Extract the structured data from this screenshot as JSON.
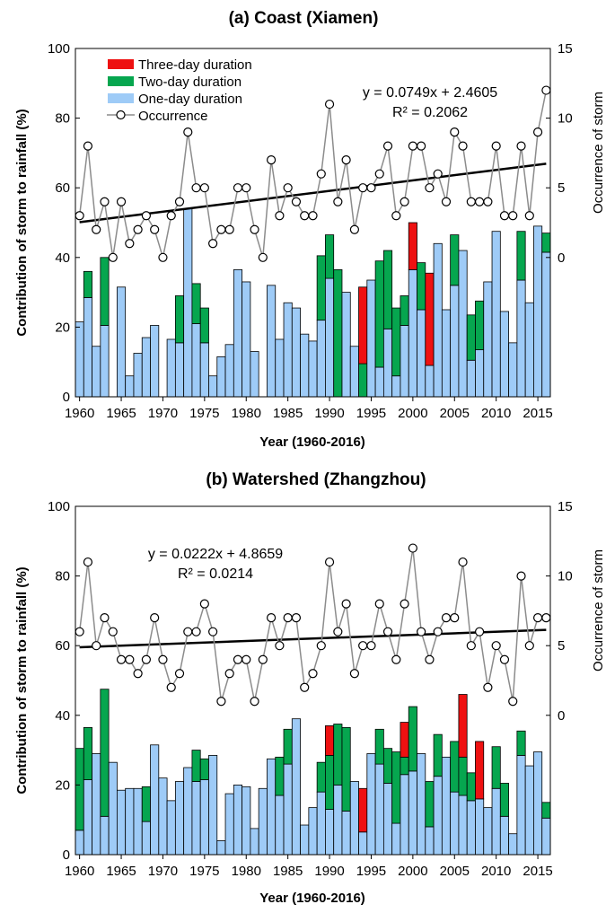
{
  "colors": {
    "one_day": "#9ecbf7",
    "two_day": "#06a64f",
    "three_day": "#ee1111",
    "occurrence": "#8c8c8c",
    "trend": "#000000"
  },
  "legend": {
    "three_day": "Three-day duration",
    "two_day": "Two-day duration",
    "one_day": "One-day duration",
    "occurrence": "Occurrence"
  },
  "chart_data": [
    {
      "type": "bar",
      "stacked": true,
      "title": "(a) Coast (Xiamen)",
      "xlabel": "Year (1960-2016)",
      "ylabel": "Contribution of storm to rainfall (%)",
      "y2label": "Occurrence of storm",
      "xlim": [
        1959.5,
        2016.5
      ],
      "ylim": [
        0,
        100
      ],
      "y2lim": [
        -10,
        15
      ],
      "x_ticks": [
        1960,
        1965,
        1970,
        1975,
        1980,
        1985,
        1990,
        1995,
        2000,
        2005,
        2010,
        2015
      ],
      "y_ticks": [
        0,
        20,
        40,
        60,
        80,
        100
      ],
      "y2_ticks": [
        0,
        5,
        10,
        15
      ],
      "trend_equation": "y = 0.0749x + 2.4605",
      "r_squared": "R² = 0.2062",
      "trend": {
        "slope": 0.0749,
        "intercept": 2.4605
      },
      "legend_position": "top-left",
      "years": [
        1960,
        1961,
        1962,
        1963,
        1964,
        1965,
        1966,
        1967,
        1968,
        1969,
        1970,
        1971,
        1972,
        1973,
        1974,
        1975,
        1976,
        1977,
        1978,
        1979,
        1980,
        1981,
        1982,
        1983,
        1984,
        1985,
        1986,
        1987,
        1988,
        1989,
        1990,
        1991,
        1992,
        1993,
        1994,
        1995,
        1996,
        1997,
        1998,
        1999,
        2000,
        2001,
        2002,
        2003,
        2004,
        2005,
        2006,
        2007,
        2008,
        2009,
        2010,
        2011,
        2012,
        2013,
        2014,
        2015,
        2016
      ],
      "series": [
        {
          "name": "One-day duration",
          "values": [
            21.5,
            28.5,
            14.5,
            20.5,
            0,
            31.5,
            6,
            12.5,
            17,
            20.5,
            0,
            16.5,
            15.5,
            54,
            21,
            15.5,
            6,
            11.5,
            15,
            36.5,
            33,
            13,
            0,
            32,
            16.5,
            27,
            25.5,
            18,
            16,
            22,
            34,
            0,
            30,
            14.5,
            0,
            33.5,
            8.5,
            19.5,
            6,
            20.5,
            36.5,
            25,
            9,
            44,
            25,
            32,
            42,
            10.5,
            13.5,
            33,
            47.5,
            24.5,
            15.5,
            33.5,
            27,
            49,
            41.5
          ]
        },
        {
          "name": "Two-day duration",
          "values": [
            0,
            7.5,
            0,
            19.5,
            0,
            0,
            0,
            0,
            0,
            0,
            0,
            0,
            13.5,
            0,
            11.5,
            10,
            0,
            0,
            0,
            0,
            0,
            0,
            0,
            0,
            0,
            0,
            0,
            0,
            0,
            18.5,
            12.5,
            36.5,
            0,
            0,
            9.5,
            0,
            30.5,
            22.5,
            19.5,
            8.5,
            0,
            13.5,
            0,
            0,
            0,
            14.5,
            0,
            13,
            14,
            0,
            0,
            0,
            0,
            14,
            0,
            0,
            5.5
          ]
        },
        {
          "name": "Three-day duration",
          "values": [
            0,
            0,
            0,
            0,
            0,
            0,
            0,
            0,
            0,
            0,
            0,
            0,
            0,
            0,
            0,
            0,
            0,
            0,
            0,
            0,
            0,
            0,
            0,
            0,
            0,
            0,
            0,
            0,
            0,
            0,
            0,
            0,
            0,
            0,
            22,
            0,
            0,
            0,
            0,
            0,
            13.5,
            0,
            26.5,
            0,
            0,
            0,
            0,
            0,
            0,
            0,
            0,
            0,
            0,
            0,
            0,
            0,
            0
          ]
        },
        {
          "name": "Occurrence",
          "axis": "right",
          "values": [
            3,
            8,
            2,
            4,
            0,
            4,
            1,
            2,
            3,
            2,
            0,
            3,
            4,
            9,
            5,
            5,
            1,
            2,
            2,
            5,
            5,
            2,
            0,
            7,
            3,
            5,
            4,
            3,
            3,
            6,
            11,
            4,
            7,
            2,
            5,
            5,
            6,
            8,
            3,
            4,
            8,
            8,
            5,
            6,
            4,
            9,
            8,
            4,
            4,
            4,
            8,
            3,
            3,
            8,
            3,
            9,
            12
          ]
        }
      ]
    },
    {
      "type": "bar",
      "stacked": true,
      "title": "(b) Watershed (Zhangzhou)",
      "xlabel": "Year (1960-2016)",
      "ylabel": "Contribution of storm to rainfall (%)",
      "y2label": "Occurrence of storm",
      "xlim": [
        1959.5,
        2016.5
      ],
      "ylim": [
        0,
        100
      ],
      "y2lim": [
        -10,
        15
      ],
      "x_ticks": [
        1960,
        1965,
        1970,
        1975,
        1980,
        1985,
        1990,
        1995,
        2000,
        2005,
        2010,
        2015
      ],
      "y_ticks": [
        0,
        20,
        40,
        60,
        80,
        100
      ],
      "y2_ticks": [
        0,
        5,
        10,
        15
      ],
      "trend_equation": "y = 0.0222x + 4.8659",
      "r_squared": "R² = 0.0214",
      "trend": {
        "slope": 0.0222,
        "intercept": 4.8659
      },
      "years": [
        1960,
        1961,
        1962,
        1963,
        1964,
        1965,
        1966,
        1967,
        1968,
        1969,
        1970,
        1971,
        1972,
        1973,
        1974,
        1975,
        1976,
        1977,
        1978,
        1979,
        1980,
        1981,
        1982,
        1983,
        1984,
        1985,
        1986,
        1987,
        1988,
        1989,
        1990,
        1991,
        1992,
        1993,
        1994,
        1995,
        1996,
        1997,
        1998,
        1999,
        2000,
        2001,
        2002,
        2003,
        2004,
        2005,
        2006,
        2007,
        2008,
        2009,
        2010,
        2011,
        2012,
        2013,
        2014,
        2015,
        2016
      ],
      "series": [
        {
          "name": "One-day duration",
          "values": [
            7,
            21.5,
            29,
            11,
            26.5,
            18.5,
            19,
            19,
            9.5,
            31.5,
            22,
            15.5,
            21,
            25,
            21,
            21.5,
            28.5,
            4,
            17.5,
            20,
            19.5,
            7.5,
            19,
            27.5,
            17,
            26,
            39,
            8.5,
            13.5,
            18,
            13,
            20,
            12.5,
            21,
            6.5,
            29,
            26,
            20.5,
            9,
            23,
            24,
            29,
            8,
            22.5,
            28,
            18,
            17,
            15.5,
            16,
            13.5,
            19,
            11,
            6,
            28.5,
            25.5,
            29.5,
            10.5
          ]
        },
        {
          "name": "Two-day duration",
          "values": [
            23.5,
            15,
            0,
            36.5,
            0,
            0,
            0,
            0,
            10,
            0,
            0,
            0,
            0,
            0,
            9,
            6,
            0,
            0,
            0,
            0,
            0,
            0,
            0,
            0,
            11,
            10,
            0,
            0,
            0,
            8.5,
            15.5,
            17.5,
            24,
            0,
            0,
            0,
            10,
            10,
            20.5,
            5,
            18.5,
            0,
            13,
            12,
            0,
            14.5,
            11,
            8,
            0,
            0,
            12,
            9.5,
            0,
            7,
            0,
            0,
            4.5
          ]
        },
        {
          "name": "Three-day duration",
          "values": [
            0,
            0,
            0,
            0,
            0,
            0,
            0,
            0,
            0,
            0,
            0,
            0,
            0,
            0,
            0,
            0,
            0,
            0,
            0,
            0,
            0,
            0,
            0,
            0,
            0,
            0,
            0,
            0,
            0,
            0,
            8.5,
            0,
            0,
            0,
            12.5,
            0,
            0,
            0,
            0,
            10,
            0,
            0,
            0,
            0,
            0,
            0,
            18,
            0,
            16.5,
            0,
            0,
            0,
            0,
            0,
            0,
            0,
            0
          ]
        },
        {
          "name": "Occurrence",
          "axis": "right",
          "values": [
            6,
            11,
            5,
            7,
            6,
            4,
            4,
            3,
            4,
            7,
            4,
            2,
            3,
            6,
            6,
            8,
            6,
            1,
            3,
            4,
            4,
            1,
            4,
            7,
            5,
            7,
            7,
            2,
            3,
            5,
            11,
            6,
            8,
            3,
            5,
            5,
            8,
            6,
            4,
            8,
            12,
            6,
            4,
            6,
            7,
            7,
            11,
            5,
            6,
            2,
            5,
            4,
            1,
            10,
            5,
            7,
            7
          ]
        }
      ]
    }
  ]
}
